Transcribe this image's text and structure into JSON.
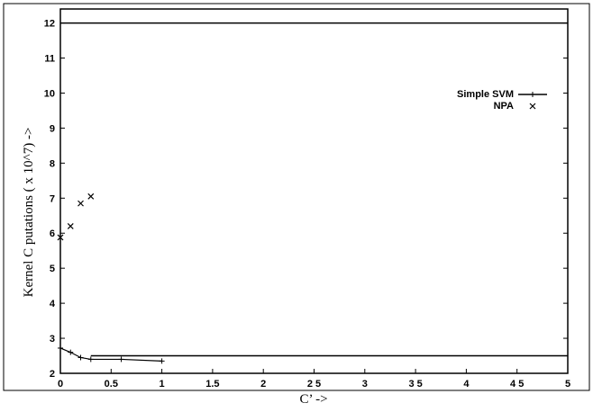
{
  "chart_data": {
    "type": "line",
    "title": "",
    "xlabel": "C’ ->",
    "ylabel": "Kernel C    putations ( x 10^7) ->",
    "xlim": [
      0,
      5
    ],
    "ylim": [
      2,
      12.4
    ],
    "x_ticks": [
      "0",
      "0.5",
      "1",
      "1.5",
      "2",
      "2 5",
      "3",
      "3 5",
      "4",
      "4 5",
      "5"
    ],
    "y_ticks": [
      "2",
      "3",
      "4",
      "5",
      "6",
      "7",
      "8",
      "9",
      "10",
      "11",
      "12"
    ],
    "legend_placement": "top-right",
    "grid": false,
    "series": [
      {
        "name": "Simple SVM",
        "style": "line-plus",
        "x": [
          0.0,
          0.1,
          0.2,
          0.3,
          0.6,
          1.0
        ],
        "y": [
          2.72,
          2.6,
          2.45,
          2.4,
          2.4,
          2.35
        ]
      },
      {
        "name": "NPA",
        "style": "cross",
        "x": [
          0.0,
          0.1,
          0.2,
          0.3
        ],
        "y": [
          5.88,
          6.2,
          6.85,
          7.05
        ]
      }
    ],
    "reference_lines": [
      {
        "y": 12.0,
        "x_start": 0,
        "x_end": 5
      },
      {
        "y": 2.5,
        "x_start": 0.3,
        "x_end": 5
      }
    ],
    "colors": {
      "line": "#000000",
      "background": "#ffffff"
    }
  }
}
